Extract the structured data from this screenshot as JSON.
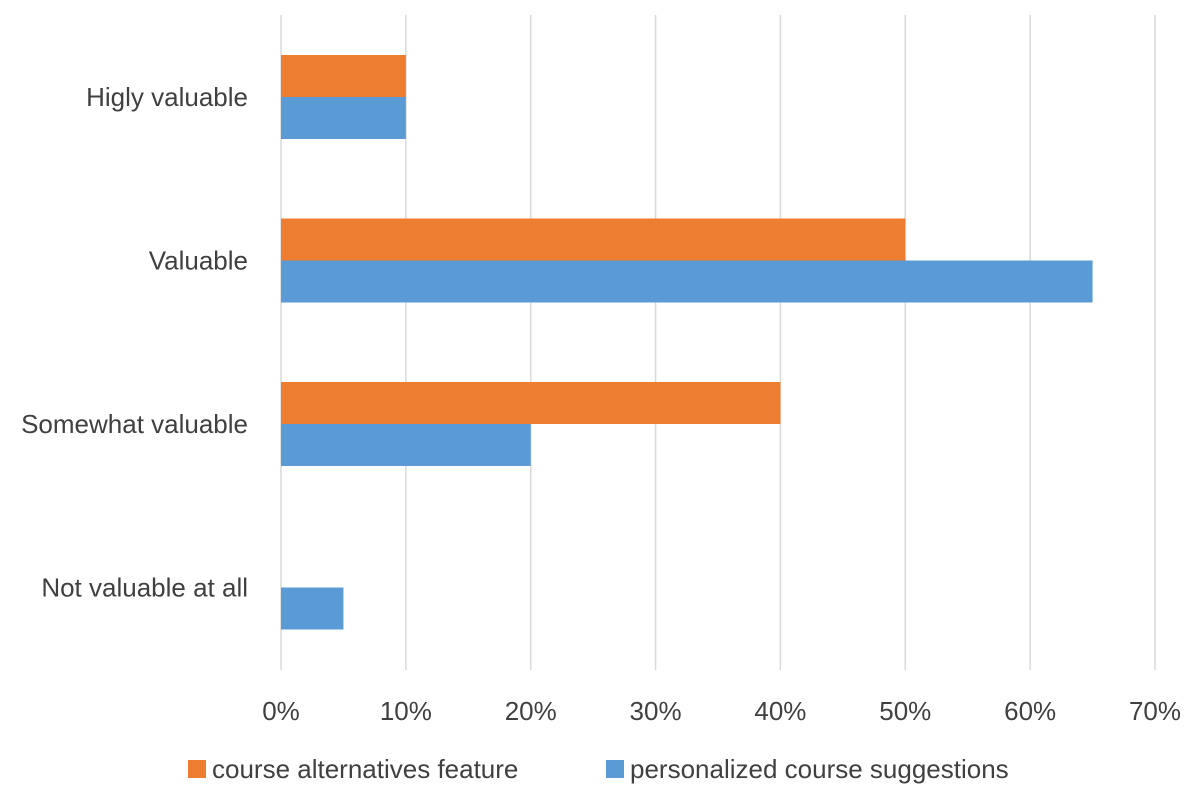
{
  "chart_data": {
    "type": "bar",
    "orientation": "horizontal",
    "categories": [
      "Higly valuable",
      "Valuable",
      "Somewhat valuable",
      "Not valuable at all"
    ],
    "series": [
      {
        "name": "course alternatives feature",
        "color": "#ED7D31",
        "values": [
          10,
          50,
          40,
          0
        ]
      },
      {
        "name": "personalized course suggestions",
        "color": "#5B9BD5",
        "values": [
          10,
          65,
          20,
          5
        ]
      }
    ],
    "xlim": [
      0,
      70
    ],
    "xticks": [
      "0%",
      "10%",
      "20%",
      "30%",
      "40%",
      "50%",
      "60%",
      "70%"
    ],
    "grid": true,
    "legend_position": "bottom"
  }
}
